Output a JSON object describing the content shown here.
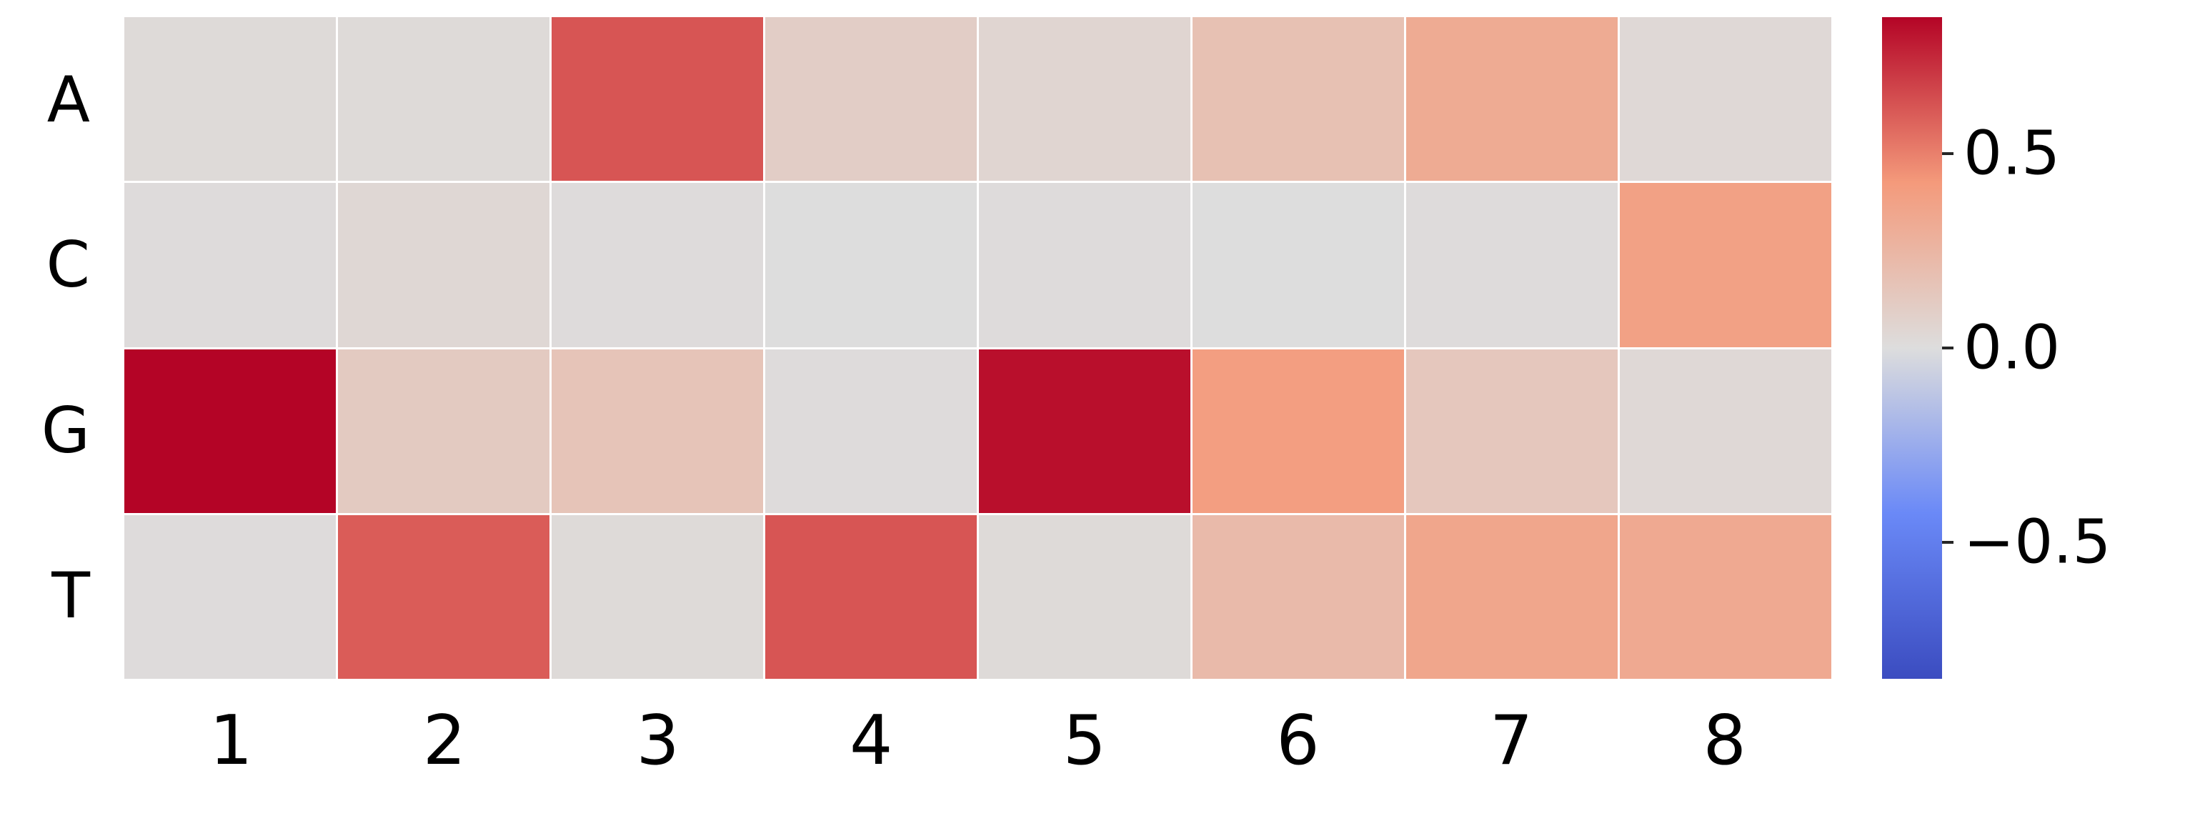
{
  "chart_data": {
    "type": "heatmap",
    "title": "",
    "xlabel": "",
    "ylabel": "",
    "rows": [
      "A",
      "C",
      "G",
      "T"
    ],
    "columns": [
      "1",
      "2",
      "3",
      "4",
      "5",
      "6",
      "7",
      "8"
    ],
    "values": [
      [
        0.02,
        0.02,
        0.62,
        0.1,
        0.05,
        0.18,
        0.32,
        0.03
      ],
      [
        0.01,
        0.04,
        0.01,
        0.0,
        0.01,
        0.0,
        0.01,
        0.38
      ],
      [
        0.85,
        0.12,
        0.16,
        0.01,
        0.82,
        0.4,
        0.14,
        0.03
      ],
      [
        0.01,
        0.6,
        0.02,
        0.62,
        0.02,
        0.22,
        0.35,
        0.33
      ]
    ],
    "colormap": "coolwarm",
    "vmin": -0.85,
    "vmax": 0.85,
    "grid_line_color": "#ffffff",
    "legend_position": "right",
    "colorbar": {
      "ticks": [
        0.5,
        0.0,
        -0.5
      ],
      "tick_labels": [
        "0.5",
        "0.0",
        "−0.5"
      ],
      "anchors": [
        {
          "t": 0.0,
          "color": "#3b4cc0"
        },
        {
          "t": 0.25,
          "color": "#6a89f7"
        },
        {
          "t": 0.5,
          "color": "#dddddd"
        },
        {
          "t": 0.75,
          "color": "#f49a7b"
        },
        {
          "t": 1.0,
          "color": "#b40426"
        }
      ]
    }
  }
}
